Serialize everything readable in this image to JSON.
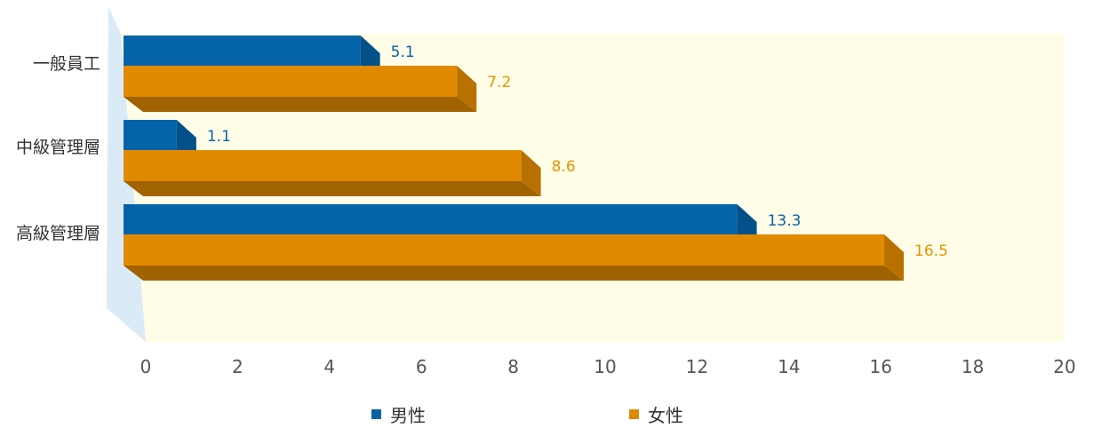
{
  "chart_data": {
    "type": "bar",
    "orientation": "horizontal",
    "three_d": true,
    "categories": [
      "一般員工",
      "中級管理層",
      "高級管理層"
    ],
    "series": [
      {
        "name": "男性",
        "values": [
          5.1,
          1.1,
          13.3
        ],
        "color": "#0563a8",
        "label_color": "#0563a8"
      },
      {
        "name": "女性",
        "values": [
          7.2,
          8.6,
          16.5
        ],
        "color": "#e08a00",
        "label_color": "#e59400"
      }
    ],
    "xlim": [
      0,
      20
    ],
    "xticks": [
      0,
      2,
      4,
      6,
      8,
      10,
      12,
      14,
      16,
      18,
      20
    ],
    "title": "",
    "xlabel": "",
    "ylabel": "",
    "legend_position": "bottom",
    "grid": false,
    "plot_background": "#fffde7",
    "side_wall_color": "#dbeaf7"
  }
}
